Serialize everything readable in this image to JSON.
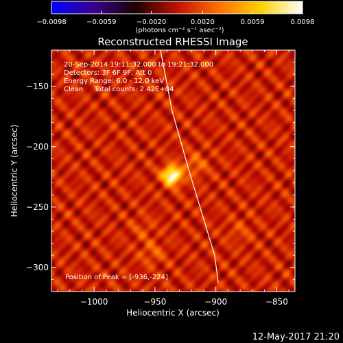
{
  "chart_data": {
    "type": "heatmap",
    "title": "Reconstructed RHESSI Image",
    "xlabel": "Heliocentric X (arcsec)",
    "ylabel": "Heliocentric Y (arcsec)",
    "xlim": [
      -1035,
      -835
    ],
    "ylim": [
      -320,
      -120
    ],
    "x_ticks": [
      -1000,
      -950,
      -900,
      -850
    ],
    "x_tick_labels": [
      "−1000",
      "−950",
      "−900",
      "−850"
    ],
    "y_ticks": [
      -150,
      -200,
      -250,
      -300
    ],
    "y_tick_labels": [
      "−150",
      "−200",
      "−250",
      "−300"
    ],
    "colorbar": {
      "range": [
        -0.0098,
        0.0098
      ],
      "ticks": [
        -0.0098,
        -0.0059,
        -0.002,
        0.002,
        0.0059,
        0.0098
      ],
      "tick_labels": [
        "−0.0098",
        "−0.0059",
        "−0.0020",
        "0.0020",
        "0.0059",
        "0.0098"
      ],
      "units": "(photons cm⁻² s⁻¹ asec⁻²)",
      "colormap": [
        "#0000ff",
        "#3a0090",
        "#1a0000",
        "#c01000",
        "#ff7000",
        "#ffd000",
        "#ffffff"
      ]
    },
    "info_lines": [
      "20-Sep-2014 19:11:32.000 to 19:21:32.000",
      "Detectors: 3F 6F 9F, Att 0",
      "Energy Range: 6.0 - 12.0 keV",
      "Clean     Total counts: 2.42E+04"
    ],
    "peak_label": "Position of Peak = [-936,-224]",
    "peak": {
      "x": -936,
      "y": -224,
      "value": 0.0098
    },
    "secondary_sources": [
      {
        "x": -917,
        "y": -215,
        "value": 0.0022
      },
      {
        "x": -952,
        "y": -288,
        "value": 0.0018
      },
      {
        "x": -960,
        "y": -268,
        "value": 0.0012
      },
      {
        "x": -880,
        "y": -270,
        "value": 0.0012
      }
    ],
    "limb_curve": [
      {
        "x": -945.5,
        "y": -120
      },
      {
        "x": -936,
        "y": -170
      },
      {
        "x": -922,
        "y": -220
      },
      {
        "x": -910,
        "y": -260
      },
      {
        "x": -901,
        "y": -290
      },
      {
        "x": -898,
        "y": -313
      }
    ]
  },
  "footer_timestamp": "12-May-2017 21:20"
}
